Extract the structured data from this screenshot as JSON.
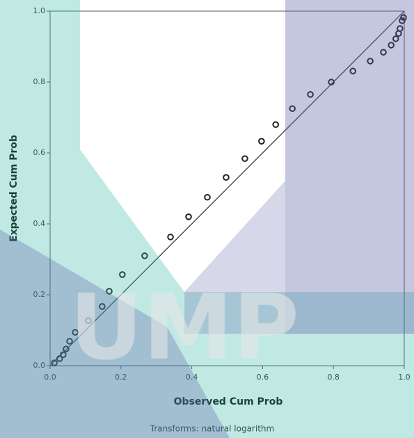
{
  "chart_data": {
    "type": "scatter",
    "x_label": "Observed Cum Prob",
    "y_label": "Expected Cum Prob",
    "footnote": "Transforms: natural logarithm",
    "watermark": "UMP",
    "x": [
      0.012,
      0.027,
      0.037,
      0.045,
      0.055,
      0.071,
      0.108,
      0.147,
      0.167,
      0.204,
      0.267,
      0.34,
      0.391,
      0.444,
      0.497,
      0.55,
      0.597,
      0.637,
      0.684,
      0.735,
      0.794,
      0.855,
      0.904,
      0.941,
      0.963,
      0.976,
      0.984,
      0.988,
      0.994,
      0.998
    ],
    "values": [
      0.008,
      0.02,
      0.031,
      0.047,
      0.069,
      0.094,
      0.127,
      0.167,
      0.21,
      0.257,
      0.31,
      0.363,
      0.42,
      0.475,
      0.531,
      0.584,
      0.633,
      0.68,
      0.725,
      0.765,
      0.8,
      0.831,
      0.859,
      0.884,
      0.904,
      0.922,
      0.937,
      0.951,
      0.973,
      0.982
    ],
    "color": "#222222",
    "xlim": [
      0,
      1
    ],
    "ylim": [
      0,
      1
    ],
    "xticks": [
      {
        "value": 0,
        "label": "0.0"
      },
      0.2,
      0.4,
      0.6,
      0.8,
      {
        "value": 1,
        "label": "1.0"
      }
    ],
    "yticks": [
      {
        "value": 0,
        "label": "0.0"
      },
      0.2,
      0.4,
      0.6,
      0.8,
      {
        "value": 1,
        "label": "1.0"
      }
    ],
    "reference_line": true
  }
}
